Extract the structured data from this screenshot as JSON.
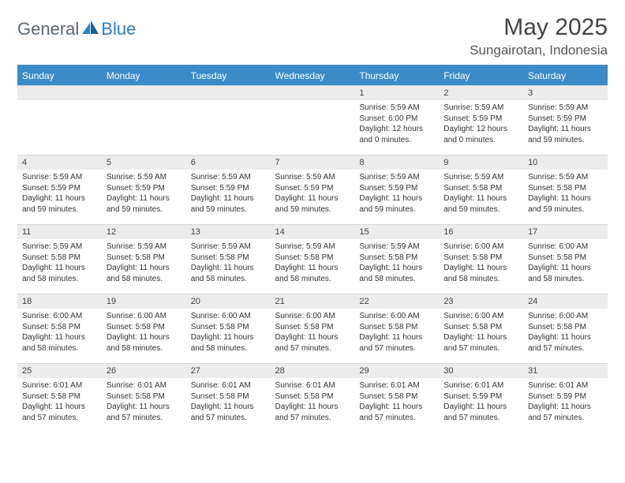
{
  "logo": {
    "part1": "General",
    "part2": "Blue"
  },
  "title": "May 2025",
  "location": "Sungairotan, Indonesia",
  "weekdays": [
    "Sunday",
    "Monday",
    "Tuesday",
    "Wednesday",
    "Thursday",
    "Friday",
    "Saturday"
  ],
  "colors": {
    "header_bg": "#3b8bc9",
    "daynum_bg": "#ececec",
    "logo_gray": "#5a6670",
    "logo_blue": "#2d7fc1"
  },
  "first_weekday_index": 4,
  "days": [
    {
      "n": 1,
      "sunrise": "5:59 AM",
      "sunset": "6:00 PM",
      "daylight": "12 hours and 0 minutes."
    },
    {
      "n": 2,
      "sunrise": "5:59 AM",
      "sunset": "5:59 PM",
      "daylight": "12 hours and 0 minutes."
    },
    {
      "n": 3,
      "sunrise": "5:59 AM",
      "sunset": "5:59 PM",
      "daylight": "11 hours and 59 minutes."
    },
    {
      "n": 4,
      "sunrise": "5:59 AM",
      "sunset": "5:59 PM",
      "daylight": "11 hours and 59 minutes."
    },
    {
      "n": 5,
      "sunrise": "5:59 AM",
      "sunset": "5:59 PM",
      "daylight": "11 hours and 59 minutes."
    },
    {
      "n": 6,
      "sunrise": "5:59 AM",
      "sunset": "5:59 PM",
      "daylight": "11 hours and 59 minutes."
    },
    {
      "n": 7,
      "sunrise": "5:59 AM",
      "sunset": "5:59 PM",
      "daylight": "11 hours and 59 minutes."
    },
    {
      "n": 8,
      "sunrise": "5:59 AM",
      "sunset": "5:59 PM",
      "daylight": "11 hours and 59 minutes."
    },
    {
      "n": 9,
      "sunrise": "5:59 AM",
      "sunset": "5:58 PM",
      "daylight": "11 hours and 59 minutes."
    },
    {
      "n": 10,
      "sunrise": "5:59 AM",
      "sunset": "5:58 PM",
      "daylight": "11 hours and 59 minutes."
    },
    {
      "n": 11,
      "sunrise": "5:59 AM",
      "sunset": "5:58 PM",
      "daylight": "11 hours and 58 minutes."
    },
    {
      "n": 12,
      "sunrise": "5:59 AM",
      "sunset": "5:58 PM",
      "daylight": "11 hours and 58 minutes."
    },
    {
      "n": 13,
      "sunrise": "5:59 AM",
      "sunset": "5:58 PM",
      "daylight": "11 hours and 58 minutes."
    },
    {
      "n": 14,
      "sunrise": "5:59 AM",
      "sunset": "5:58 PM",
      "daylight": "11 hours and 58 minutes."
    },
    {
      "n": 15,
      "sunrise": "5:59 AM",
      "sunset": "5:58 PM",
      "daylight": "11 hours and 58 minutes."
    },
    {
      "n": 16,
      "sunrise": "6:00 AM",
      "sunset": "5:58 PM",
      "daylight": "11 hours and 58 minutes."
    },
    {
      "n": 17,
      "sunrise": "6:00 AM",
      "sunset": "5:58 PM",
      "daylight": "11 hours and 58 minutes."
    },
    {
      "n": 18,
      "sunrise": "6:00 AM",
      "sunset": "5:58 PM",
      "daylight": "11 hours and 58 minutes."
    },
    {
      "n": 19,
      "sunrise": "6:00 AM",
      "sunset": "5:58 PM",
      "daylight": "11 hours and 58 minutes."
    },
    {
      "n": 20,
      "sunrise": "6:00 AM",
      "sunset": "5:58 PM",
      "daylight": "11 hours and 58 minutes."
    },
    {
      "n": 21,
      "sunrise": "6:00 AM",
      "sunset": "5:58 PM",
      "daylight": "11 hours and 57 minutes."
    },
    {
      "n": 22,
      "sunrise": "6:00 AM",
      "sunset": "5:58 PM",
      "daylight": "11 hours and 57 minutes."
    },
    {
      "n": 23,
      "sunrise": "6:00 AM",
      "sunset": "5:58 PM",
      "daylight": "11 hours and 57 minutes."
    },
    {
      "n": 24,
      "sunrise": "6:00 AM",
      "sunset": "5:58 PM",
      "daylight": "11 hours and 57 minutes."
    },
    {
      "n": 25,
      "sunrise": "6:01 AM",
      "sunset": "5:58 PM",
      "daylight": "11 hours and 57 minutes."
    },
    {
      "n": 26,
      "sunrise": "6:01 AM",
      "sunset": "5:58 PM",
      "daylight": "11 hours and 57 minutes."
    },
    {
      "n": 27,
      "sunrise": "6:01 AM",
      "sunset": "5:58 PM",
      "daylight": "11 hours and 57 minutes."
    },
    {
      "n": 28,
      "sunrise": "6:01 AM",
      "sunset": "5:58 PM",
      "daylight": "11 hours and 57 minutes."
    },
    {
      "n": 29,
      "sunrise": "6:01 AM",
      "sunset": "5:58 PM",
      "daylight": "11 hours and 57 minutes."
    },
    {
      "n": 30,
      "sunrise": "6:01 AM",
      "sunset": "5:59 PM",
      "daylight": "11 hours and 57 minutes."
    },
    {
      "n": 31,
      "sunrise": "6:01 AM",
      "sunset": "5:59 PM",
      "daylight": "11 hours and 57 minutes."
    }
  ],
  "labels": {
    "sunrise": "Sunrise: ",
    "sunset": "Sunset: ",
    "daylight": "Daylight: "
  }
}
